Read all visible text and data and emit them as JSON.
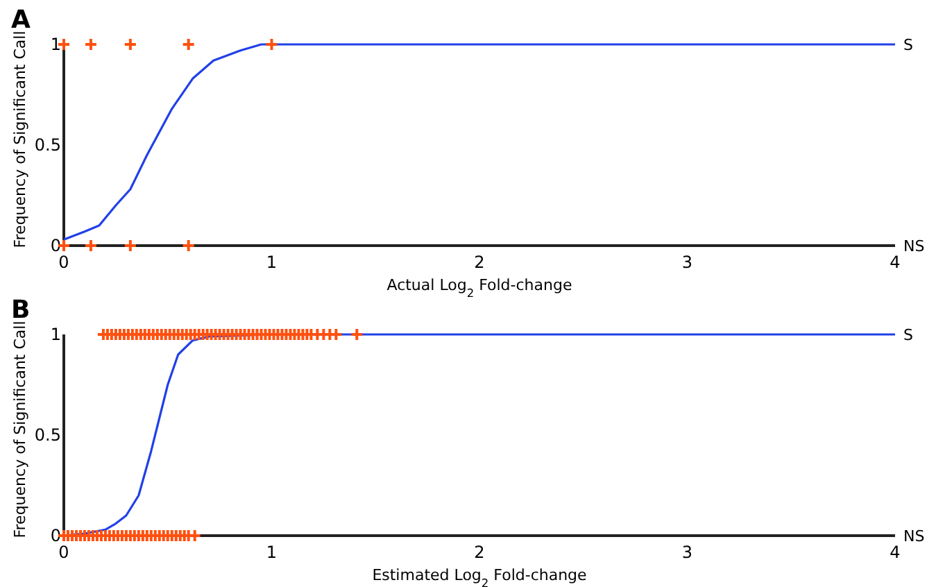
{
  "chart_data": [
    {
      "type": "line",
      "title": "A",
      "xlabel": "Actual Log$_{2}$ Fold-change",
      "ylabel": "Frequency of Significant Call",
      "xlim": [
        0,
        4
      ],
      "xticks": [
        0,
        1,
        2,
        3,
        4
      ],
      "ylim": [
        0,
        1
      ],
      "yticks": [
        0,
        0.5,
        1
      ],
      "annotations": [
        "S",
        "NS"
      ],
      "grid": false,
      "series": [
        {
          "color": "#2040e8",
          "marker": "none",
          "x": [
            0,
            0.1,
            0.17,
            0.25,
            0.32,
            0.4,
            0.52,
            0.62,
            0.72,
            0.85,
            0.95,
            1.1,
            2,
            3,
            4
          ],
          "values": [
            0.03,
            0.07,
            0.1,
            0.2,
            0.28,
            0.45,
            0.68,
            0.83,
            0.92,
            0.97,
            1,
            1,
            1,
            1,
            1
          ]
        },
        {
          "type": "scatter",
          "color": "#ff5010",
          "marker": "cross",
          "x": [
            0,
            0.13,
            0.32,
            0.6,
            1,
            0,
            0.13,
            0.32,
            0.6
          ],
          "values": [
            1,
            1,
            1,
            1,
            1,
            0,
            0,
            0,
            0
          ]
        }
      ]
    },
    {
      "type": "line",
      "title": "B",
      "xlabel": "Estimated Log$_{2}$ Fold-change",
      "ylabel": "Frequency of Significant Call",
      "xlim": [
        0,
        4
      ],
      "xticks": [
        0,
        1,
        2,
        3,
        4
      ],
      "ylim": [
        0,
        1
      ],
      "yticks": [
        0,
        0.5,
        1
      ],
      "annotations": [
        "S",
        "NS"
      ],
      "grid": false,
      "series": [
        {
          "color": "#2040e8",
          "marker": "none",
          "x": [
            0,
            0.1,
            0.2,
            0.25,
            0.3,
            0.36,
            0.42,
            0.5,
            0.55,
            0.62,
            0.7,
            1,
            2,
            3,
            4
          ],
          "values": [
            0,
            0.01,
            0.03,
            0.06,
            0.1,
            0.2,
            0.42,
            0.75,
            0.9,
            0.97,
            0.99,
            1,
            1,
            1,
            1
          ]
        },
        {
          "type": "scatter",
          "color": "#ff5010",
          "marker": "cross",
          "x": [
            0.19,
            0.21,
            0.23,
            0.25,
            0.27,
            0.29,
            0.31,
            0.33,
            0.35,
            0.37,
            0.39,
            0.41,
            0.43,
            0.45,
            0.47,
            0.49,
            0.51,
            0.53,
            0.55,
            0.57,
            0.59,
            0.61,
            0.63,
            0.65,
            0.67,
            0.69,
            0.71,
            0.73,
            0.75,
            0.77,
            0.79,
            0.81,
            0.83,
            0.85,
            0.87,
            0.89,
            0.91,
            0.93,
            0.95,
            0.97,
            0.99,
            1.01,
            1.03,
            1.05,
            1.07,
            1.09,
            1.11,
            1.13,
            1.15,
            1.17,
            1.19,
            1.22,
            1.25,
            1.28,
            1.31,
            1.41,
            0,
            0.02,
            0.04,
            0.06,
            0.08,
            0.1,
            0.12,
            0.14,
            0.16,
            0.18,
            0.2,
            0.22,
            0.24,
            0.26,
            0.28,
            0.3,
            0.32,
            0.34,
            0.36,
            0.38,
            0.4,
            0.42,
            0.44,
            0.46,
            0.48,
            0.5,
            0.52,
            0.54,
            0.56,
            0.58,
            0.6,
            0.63
          ],
          "values": [
            1,
            1,
            1,
            1,
            1,
            1,
            1,
            1,
            1,
            1,
            1,
            1,
            1,
            1,
            1,
            1,
            1,
            1,
            1,
            1,
            1,
            1,
            1,
            1,
            1,
            1,
            1,
            1,
            1,
            1,
            1,
            1,
            1,
            1,
            1,
            1,
            1,
            1,
            1,
            1,
            1,
            1,
            1,
            1,
            1,
            1,
            1,
            1,
            1,
            1,
            1,
            1,
            1,
            1,
            1,
            1,
            0,
            0,
            0,
            0,
            0,
            0,
            0,
            0,
            0,
            0,
            0,
            0,
            0,
            0,
            0,
            0,
            0,
            0,
            0,
            0,
            0,
            0,
            0,
            0,
            0,
            0,
            0,
            0,
            0,
            0,
            0,
            0
          ]
        }
      ]
    }
  ]
}
